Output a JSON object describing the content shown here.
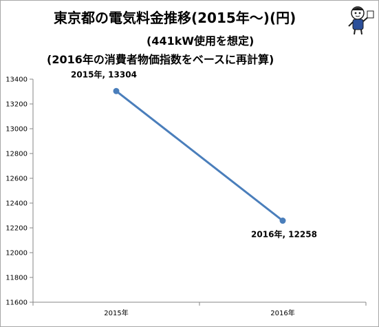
{
  "title": {
    "line1": "東京都の電気料金推移(2015年～)(円)",
    "line2": "(441kW使用を想定)",
    "line3": "(2016年の消費者物価指数をベースに再計算)"
  },
  "chart_data": {
    "type": "line",
    "categories": [
      "2015年",
      "2016年"
    ],
    "series": [
      {
        "values": [
          13304,
          12258
        ],
        "color": "#4a7ebb"
      }
    ],
    "data_labels": [
      "2015年, 13304",
      "2016年, 12258"
    ],
    "ylim": [
      11600,
      13400
    ],
    "yticks": [
      11600,
      11800,
      12000,
      12200,
      12400,
      12600,
      12800,
      13000,
      13200,
      13400
    ],
    "grid": false,
    "legend": "none",
    "xlabel": "",
    "ylabel": ""
  },
  "colors": {
    "line": "#4a7ebb",
    "axis": "#868686",
    "frame": "#a6a6a6"
  },
  "icons": {
    "mascot": "mascot-character-icon"
  }
}
